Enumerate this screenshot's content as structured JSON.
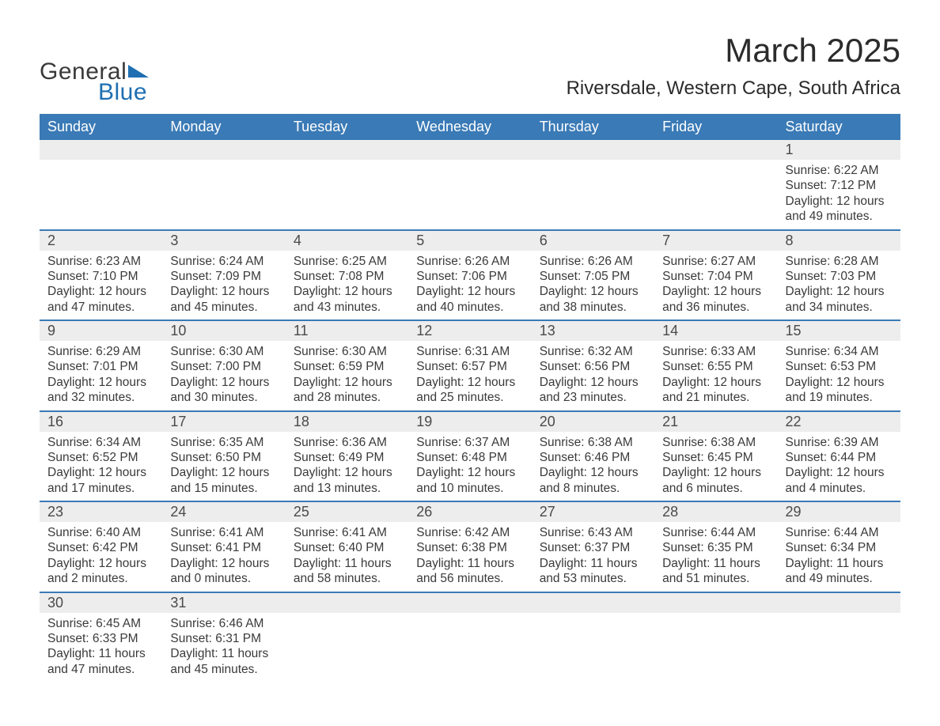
{
  "brand": {
    "general": "General",
    "blue": "Blue"
  },
  "title": "March 2025",
  "location": "Riversdale, Western Cape, South Africa",
  "colors": {
    "header_bg": "#3a7ab6",
    "header_text": "#ffffff",
    "daynum_bg": "#ededed",
    "row_border": "#3a7ab6",
    "body_text": "#3a3a3a",
    "brand_blue": "#1f6fb2",
    "background": "#ffffff"
  },
  "typography": {
    "title_fontsize": 42,
    "location_fontsize": 24,
    "dow_fontsize": 18,
    "daynum_fontsize": 18,
    "data_fontsize": 15.5,
    "logo_fontsize": 30
  },
  "dow": [
    "Sunday",
    "Monday",
    "Tuesday",
    "Wednesday",
    "Thursday",
    "Friday",
    "Saturday"
  ],
  "weeks": [
    [
      null,
      null,
      null,
      null,
      null,
      null,
      {
        "n": "1",
        "sunrise": "6:22 AM",
        "sunset": "7:12 PM",
        "dl": "12 hours and 49 minutes."
      }
    ],
    [
      {
        "n": "2",
        "sunrise": "6:23 AM",
        "sunset": "7:10 PM",
        "dl": "12 hours and 47 minutes."
      },
      {
        "n": "3",
        "sunrise": "6:24 AM",
        "sunset": "7:09 PM",
        "dl": "12 hours and 45 minutes."
      },
      {
        "n": "4",
        "sunrise": "6:25 AM",
        "sunset": "7:08 PM",
        "dl": "12 hours and 43 minutes."
      },
      {
        "n": "5",
        "sunrise": "6:26 AM",
        "sunset": "7:06 PM",
        "dl": "12 hours and 40 minutes."
      },
      {
        "n": "6",
        "sunrise": "6:26 AM",
        "sunset": "7:05 PM",
        "dl": "12 hours and 38 minutes."
      },
      {
        "n": "7",
        "sunrise": "6:27 AM",
        "sunset": "7:04 PM",
        "dl": "12 hours and 36 minutes."
      },
      {
        "n": "8",
        "sunrise": "6:28 AM",
        "sunset": "7:03 PM",
        "dl": "12 hours and 34 minutes."
      }
    ],
    [
      {
        "n": "9",
        "sunrise": "6:29 AM",
        "sunset": "7:01 PM",
        "dl": "12 hours and 32 minutes."
      },
      {
        "n": "10",
        "sunrise": "6:30 AM",
        "sunset": "7:00 PM",
        "dl": "12 hours and 30 minutes."
      },
      {
        "n": "11",
        "sunrise": "6:30 AM",
        "sunset": "6:59 PM",
        "dl": "12 hours and 28 minutes."
      },
      {
        "n": "12",
        "sunrise": "6:31 AM",
        "sunset": "6:57 PM",
        "dl": "12 hours and 25 minutes."
      },
      {
        "n": "13",
        "sunrise": "6:32 AM",
        "sunset": "6:56 PM",
        "dl": "12 hours and 23 minutes."
      },
      {
        "n": "14",
        "sunrise": "6:33 AM",
        "sunset": "6:55 PM",
        "dl": "12 hours and 21 minutes."
      },
      {
        "n": "15",
        "sunrise": "6:34 AM",
        "sunset": "6:53 PM",
        "dl": "12 hours and 19 minutes."
      }
    ],
    [
      {
        "n": "16",
        "sunrise": "6:34 AM",
        "sunset": "6:52 PM",
        "dl": "12 hours and 17 minutes."
      },
      {
        "n": "17",
        "sunrise": "6:35 AM",
        "sunset": "6:50 PM",
        "dl": "12 hours and 15 minutes."
      },
      {
        "n": "18",
        "sunrise": "6:36 AM",
        "sunset": "6:49 PM",
        "dl": "12 hours and 13 minutes."
      },
      {
        "n": "19",
        "sunrise": "6:37 AM",
        "sunset": "6:48 PM",
        "dl": "12 hours and 10 minutes."
      },
      {
        "n": "20",
        "sunrise": "6:38 AM",
        "sunset": "6:46 PM",
        "dl": "12 hours and 8 minutes."
      },
      {
        "n": "21",
        "sunrise": "6:38 AM",
        "sunset": "6:45 PM",
        "dl": "12 hours and 6 minutes."
      },
      {
        "n": "22",
        "sunrise": "6:39 AM",
        "sunset": "6:44 PM",
        "dl": "12 hours and 4 minutes."
      }
    ],
    [
      {
        "n": "23",
        "sunrise": "6:40 AM",
        "sunset": "6:42 PM",
        "dl": "12 hours and 2 minutes."
      },
      {
        "n": "24",
        "sunrise": "6:41 AM",
        "sunset": "6:41 PM",
        "dl": "12 hours and 0 minutes."
      },
      {
        "n": "25",
        "sunrise": "6:41 AM",
        "sunset": "6:40 PM",
        "dl": "11 hours and 58 minutes."
      },
      {
        "n": "26",
        "sunrise": "6:42 AM",
        "sunset": "6:38 PM",
        "dl": "11 hours and 56 minutes."
      },
      {
        "n": "27",
        "sunrise": "6:43 AM",
        "sunset": "6:37 PM",
        "dl": "11 hours and 53 minutes."
      },
      {
        "n": "28",
        "sunrise": "6:44 AM",
        "sunset": "6:35 PM",
        "dl": "11 hours and 51 minutes."
      },
      {
        "n": "29",
        "sunrise": "6:44 AM",
        "sunset": "6:34 PM",
        "dl": "11 hours and 49 minutes."
      }
    ],
    [
      {
        "n": "30",
        "sunrise": "6:45 AM",
        "sunset": "6:33 PM",
        "dl": "11 hours and 47 minutes."
      },
      {
        "n": "31",
        "sunrise": "6:46 AM",
        "sunset": "6:31 PM",
        "dl": "11 hours and 45 minutes."
      },
      null,
      null,
      null,
      null,
      null
    ]
  ],
  "labels": {
    "sunrise": "Sunrise: ",
    "sunset": "Sunset: ",
    "daylight": "Daylight: "
  }
}
